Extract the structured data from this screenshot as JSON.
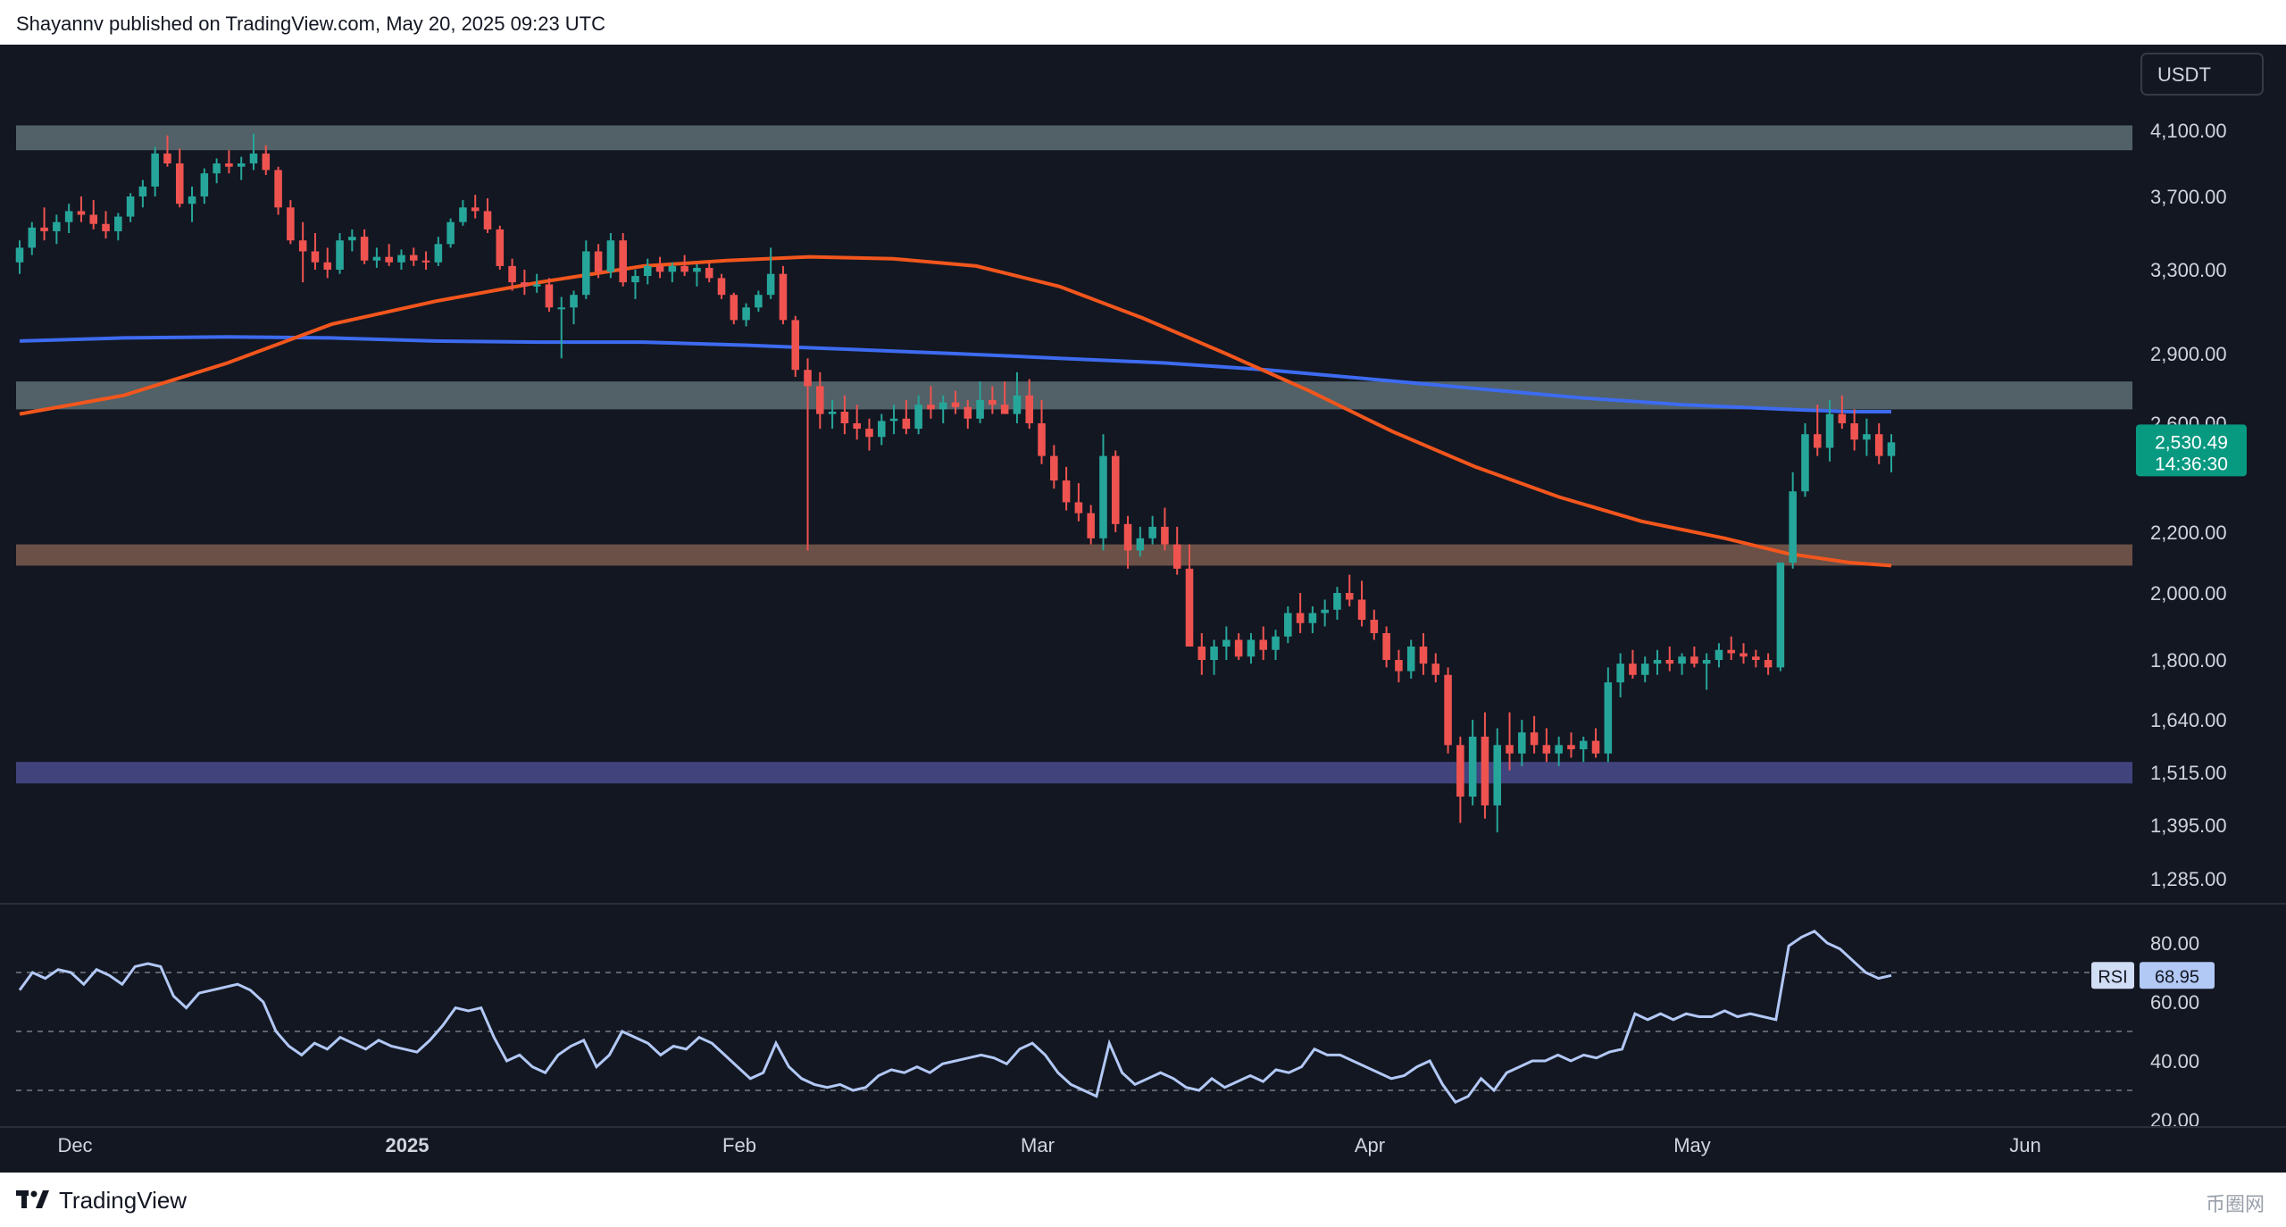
{
  "header": {
    "text": "Shayannv published on TradingView.com, May 20, 2025 09:23 UTC"
  },
  "footer": {
    "brand": "TradingView",
    "watermark": "币圈网"
  },
  "colors": {
    "background": "#131722",
    "up": "#26a69a",
    "down": "#ef5350",
    "ma_orange": "#f7525f",
    "ma_blue": "#2962ff",
    "rsi": "#b2c8f5"
  },
  "chart_data": [
    {
      "type": "candlestick",
      "currency_label": "USDT",
      "price_ticks": [
        "4,100.00",
        "3,700.00",
        "3,300.00",
        "2,900.00",
        "2,600.00",
        "2,200.00",
        "2,000.00",
        "1,800.00",
        "1,640.00",
        "1,515.00",
        "1,395.00",
        "1,285.00"
      ],
      "time_ticks": [
        "Dec",
        "2025",
        "Feb",
        "Mar",
        "Apr",
        "May",
        "Jun"
      ],
      "last_price": "2,530.49",
      "countdown": "14:36:30",
      "zones": [
        {
          "low": 3980,
          "high": 4130,
          "color": "gray"
        },
        {
          "low": 2660,
          "high": 2780,
          "color": "gray"
        },
        {
          "low": 2090,
          "high": 2160,
          "color": "brown"
        },
        {
          "low": 1490,
          "high": 1540,
          "color": "purple"
        }
      ],
      "candles_ohlc": [
        [
          3340,
          3460,
          3280,
          3420
        ],
        [
          3420,
          3560,
          3380,
          3530
        ],
        [
          3530,
          3640,
          3460,
          3510
        ],
        [
          3510,
          3600,
          3440,
          3560
        ],
        [
          3560,
          3660,
          3500,
          3620
        ],
        [
          3620,
          3700,
          3560,
          3600
        ],
        [
          3600,
          3680,
          3520,
          3550
        ],
        [
          3550,
          3620,
          3470,
          3510
        ],
        [
          3510,
          3610,
          3460,
          3590
        ],
        [
          3590,
          3720,
          3560,
          3700
        ],
        [
          3700,
          3800,
          3640,
          3760
        ],
        [
          3760,
          4000,
          3700,
          3960
        ],
        [
          3960,
          4070,
          3880,
          3900
        ],
        [
          3900,
          3990,
          3640,
          3660
        ],
        [
          3660,
          3760,
          3560,
          3700
        ],
        [
          3700,
          3870,
          3660,
          3840
        ],
        [
          3840,
          3930,
          3780,
          3900
        ],
        [
          3900,
          3980,
          3840,
          3880
        ],
        [
          3880,
          3940,
          3800,
          3900
        ],
        [
          3900,
          4080,
          3860,
          3960
        ],
        [
          3960,
          4010,
          3830,
          3860
        ],
        [
          3860,
          3880,
          3600,
          3640
        ],
        [
          3640,
          3680,
          3440,
          3460
        ],
        [
          3460,
          3560,
          3240,
          3400
        ],
        [
          3400,
          3500,
          3300,
          3340
        ],
        [
          3340,
          3420,
          3260,
          3300
        ],
        [
          3300,
          3500,
          3280,
          3460
        ],
        [
          3460,
          3520,
          3400,
          3480
        ],
        [
          3480,
          3520,
          3330,
          3350
        ],
        [
          3350,
          3420,
          3310,
          3370
        ],
        [
          3370,
          3440,
          3320,
          3340
        ],
        [
          3340,
          3410,
          3300,
          3380
        ],
        [
          3380,
          3420,
          3320,
          3350
        ],
        [
          3350,
          3400,
          3300,
          3340
        ],
        [
          3340,
          3480,
          3320,
          3440
        ],
        [
          3440,
          3580,
          3420,
          3560
        ],
        [
          3560,
          3680,
          3540,
          3640
        ],
        [
          3640,
          3710,
          3580,
          3620
        ],
        [
          3620,
          3690,
          3500,
          3520
        ],
        [
          3520,
          3540,
          3300,
          3320
        ],
        [
          3320,
          3360,
          3200,
          3240
        ],
        [
          3240,
          3300,
          3180,
          3220
        ],
        [
          3220,
          3280,
          3190,
          3230
        ],
        [
          3230,
          3260,
          3100,
          3120
        ],
        [
          3120,
          3170,
          2880,
          3120
        ],
        [
          3120,
          3200,
          3040,
          3180
        ],
        [
          3180,
          3460,
          3160,
          3400
        ],
        [
          3400,
          3440,
          3260,
          3290
        ],
        [
          3290,
          3500,
          3260,
          3460
        ],
        [
          3460,
          3500,
          3220,
          3240
        ],
        [
          3240,
          3300,
          3160,
          3270
        ],
        [
          3270,
          3360,
          3230,
          3320
        ],
        [
          3320,
          3370,
          3260,
          3290
        ],
        [
          3290,
          3340,
          3240,
          3320
        ],
        [
          3320,
          3380,
          3270,
          3290
        ],
        [
          3290,
          3330,
          3220,
          3310
        ],
        [
          3310,
          3340,
          3240,
          3260
        ],
        [
          3260,
          3280,
          3160,
          3180
        ],
        [
          3180,
          3190,
          3040,
          3060
        ],
        [
          3060,
          3140,
          3030,
          3120
        ],
        [
          3120,
          3200,
          3100,
          3180
        ],
        [
          3180,
          3420,
          3160,
          3280
        ],
        [
          3280,
          3320,
          3040,
          3060
        ],
        [
          3060,
          3080,
          2800,
          2830
        ],
        [
          2830,
          2880,
          2140,
          2760
        ],
        [
          2760,
          2820,
          2580,
          2640
        ],
        [
          2640,
          2700,
          2580,
          2650
        ],
        [
          2650,
          2720,
          2560,
          2600
        ],
        [
          2600,
          2680,
          2540,
          2580
        ],
        [
          2580,
          2620,
          2500,
          2550
        ],
        [
          2550,
          2640,
          2520,
          2610
        ],
        [
          2610,
          2680,
          2560,
          2620
        ],
        [
          2620,
          2700,
          2560,
          2580
        ],
        [
          2580,
          2720,
          2560,
          2680
        ],
        [
          2680,
          2760,
          2620,
          2660
        ],
        [
          2660,
          2720,
          2600,
          2690
        ],
        [
          2690,
          2740,
          2640,
          2670
        ],
        [
          2670,
          2700,
          2580,
          2620
        ],
        [
          2620,
          2780,
          2600,
          2700
        ],
        [
          2700,
          2760,
          2640,
          2680
        ],
        [
          2680,
          2780,
          2640,
          2640
        ],
        [
          2640,
          2820,
          2600,
          2720
        ],
        [
          2720,
          2790,
          2580,
          2600
        ],
        [
          2600,
          2700,
          2450,
          2480
        ],
        [
          2480,
          2520,
          2360,
          2390
        ],
        [
          2390,
          2440,
          2280,
          2310
        ],
        [
          2310,
          2380,
          2240,
          2270
        ],
        [
          2270,
          2300,
          2160,
          2180
        ],
        [
          2180,
          2560,
          2140,
          2480
        ],
        [
          2480,
          2500,
          2200,
          2230
        ],
        [
          2230,
          2260,
          2080,
          2140
        ],
        [
          2140,
          2220,
          2120,
          2180
        ],
        [
          2180,
          2260,
          2160,
          2220
        ],
        [
          2220,
          2290,
          2140,
          2160
        ],
        [
          2160,
          2220,
          2060,
          2080
        ],
        [
          2080,
          2160,
          2040,
          1840
        ],
        [
          1840,
          1880,
          1760,
          1800
        ],
        [
          1800,
          1860,
          1760,
          1840
        ],
        [
          1840,
          1900,
          1800,
          1860
        ],
        [
          1860,
          1880,
          1800,
          1810
        ],
        [
          1810,
          1880,
          1790,
          1860
        ],
        [
          1860,
          1900,
          1800,
          1830
        ],
        [
          1830,
          1890,
          1800,
          1870
        ],
        [
          1870,
          1960,
          1850,
          1940
        ],
        [
          1940,
          2000,
          1880,
          1910
        ],
        [
          1910,
          1960,
          1880,
          1940
        ],
        [
          1940,
          1980,
          1900,
          1950
        ],
        [
          1950,
          2020,
          1920,
          2000
        ],
        [
          2000,
          2060,
          1960,
          1980
        ],
        [
          1980,
          2040,
          1900,
          1920
        ],
        [
          1920,
          1950,
          1860,
          1880
        ],
        [
          1880,
          1900,
          1780,
          1800
        ],
        [
          1800,
          1830,
          1740,
          1770
        ],
        [
          1770,
          1860,
          1750,
          1840
        ],
        [
          1840,
          1880,
          1760,
          1790
        ],
        [
          1790,
          1820,
          1740,
          1760
        ],
        [
          1760,
          1780,
          1560,
          1580
        ],
        [
          1580,
          1600,
          1400,
          1460
        ],
        [
          1460,
          1640,
          1440,
          1600
        ],
        [
          1600,
          1660,
          1410,
          1440
        ],
        [
          1440,
          1620,
          1380,
          1580
        ],
        [
          1580,
          1660,
          1520,
          1560
        ],
        [
          1560,
          1640,
          1530,
          1610
        ],
        [
          1610,
          1650,
          1560,
          1580
        ],
        [
          1580,
          1620,
          1540,
          1560
        ],
        [
          1560,
          1600,
          1530,
          1580
        ],
        [
          1580,
          1610,
          1550,
          1570
        ],
        [
          1570,
          1600,
          1540,
          1590
        ],
        [
          1590,
          1620,
          1550,
          1560
        ],
        [
          1560,
          1780,
          1540,
          1740
        ],
        [
          1740,
          1820,
          1700,
          1790
        ],
        [
          1790,
          1830,
          1750,
          1760
        ],
        [
          1760,
          1810,
          1740,
          1790
        ],
        [
          1790,
          1830,
          1760,
          1800
        ],
        [
          1800,
          1840,
          1770,
          1790
        ],
        [
          1790,
          1820,
          1760,
          1810
        ],
        [
          1810,
          1840,
          1780,
          1790
        ],
        [
          1790,
          1820,
          1720,
          1800
        ],
        [
          1800,
          1850,
          1780,
          1830
        ],
        [
          1830,
          1870,
          1800,
          1820
        ],
        [
          1820,
          1850,
          1790,
          1810
        ],
        [
          1810,
          1830,
          1780,
          1800
        ],
        [
          1800,
          1820,
          1760,
          1780
        ],
        [
          1780,
          1880,
          1770,
          2100
        ],
        [
          2100,
          2420,
          2080,
          2350
        ],
        [
          2350,
          2600,
          2330,
          2560
        ],
        [
          2560,
          2680,
          2480,
          2510
        ],
        [
          2510,
          2700,
          2460,
          2640
        ],
        [
          2640,
          2720,
          2580,
          2600
        ],
        [
          2600,
          2660,
          2500,
          2540
        ],
        [
          2540,
          2620,
          2480,
          2560
        ],
        [
          2560,
          2600,
          2450,
          2480
        ],
        [
          2480,
          2560,
          2420,
          2530
        ]
      ],
      "ma_orange": [
        [
          0,
          2640
        ],
        [
          0.05,
          2720
        ],
        [
          0.1,
          2860
        ],
        [
          0.15,
          3040
        ],
        [
          0.2,
          3150
        ],
        [
          0.25,
          3240
        ],
        [
          0.3,
          3320
        ],
        [
          0.34,
          3350
        ],
        [
          0.38,
          3370
        ],
        [
          0.42,
          3360
        ],
        [
          0.46,
          3320
        ],
        [
          0.5,
          3220
        ],
        [
          0.54,
          3070
        ],
        [
          0.58,
          2900
        ],
        [
          0.62,
          2740
        ],
        [
          0.66,
          2570
        ],
        [
          0.7,
          2440
        ],
        [
          0.74,
          2330
        ],
        [
          0.78,
          2240
        ],
        [
          0.82,
          2180
        ],
        [
          0.85,
          2130
        ],
        [
          0.88,
          2100
        ],
        [
          0.9,
          2090
        ]
      ],
      "ma_blue": [
        [
          0,
          2960
        ],
        [
          0.05,
          2975
        ],
        [
          0.1,
          2980
        ],
        [
          0.15,
          2975
        ],
        [
          0.2,
          2960
        ],
        [
          0.25,
          2955
        ],
        [
          0.3,
          2955
        ],
        [
          0.35,
          2940
        ],
        [
          0.4,
          2920
        ],
        [
          0.45,
          2900
        ],
        [
          0.5,
          2880
        ],
        [
          0.55,
          2860
        ],
        [
          0.6,
          2830
        ],
        [
          0.65,
          2790
        ],
        [
          0.7,
          2750
        ],
        [
          0.75,
          2710
        ],
        [
          0.8,
          2680
        ],
        [
          0.85,
          2660
        ],
        [
          0.88,
          2650
        ],
        [
          0.9,
          2650
        ]
      ]
    },
    {
      "type": "line",
      "name": "RSI",
      "ticks": [
        "80.00",
        "60.00",
        "40.00",
        "20.00"
      ],
      "levels": [
        70,
        50,
        30
      ],
      "last_value": "68.95",
      "values": [
        64,
        70,
        68,
        71,
        70,
        66,
        71,
        69,
        66,
        72,
        73,
        72,
        62,
        58,
        63,
        64,
        65,
        66,
        64,
        60,
        50,
        45,
        42,
        46,
        44,
        48,
        46,
        44,
        47,
        45,
        44,
        43,
        47,
        52,
        58,
        57,
        58,
        48,
        40,
        42,
        38,
        36,
        42,
        45,
        47,
        38,
        42,
        50,
        48,
        46,
        42,
        45,
        44,
        48,
        46,
        42,
        38,
        34,
        36,
        46,
        38,
        34,
        32,
        31,
        32,
        30,
        31,
        35,
        37,
        36,
        38,
        36,
        39,
        40,
        41,
        42,
        41,
        39,
        44,
        46,
        42,
        36,
        32,
        30,
        28,
        46,
        36,
        32,
        34,
        36,
        34,
        31,
        30,
        34,
        31,
        33,
        35,
        33,
        37,
        36,
        38,
        44,
        42,
        42,
        40,
        38,
        36,
        34,
        35,
        38,
        40,
        32,
        26,
        28,
        34,
        30,
        36,
        38,
        40,
        40,
        42,
        40,
        42,
        41,
        43,
        44,
        56,
        54,
        56,
        54,
        56,
        55,
        55,
        57,
        55,
        56,
        55,
        54,
        79,
        82,
        84,
        80,
        78,
        74,
        70,
        68,
        69
      ]
    }
  ]
}
